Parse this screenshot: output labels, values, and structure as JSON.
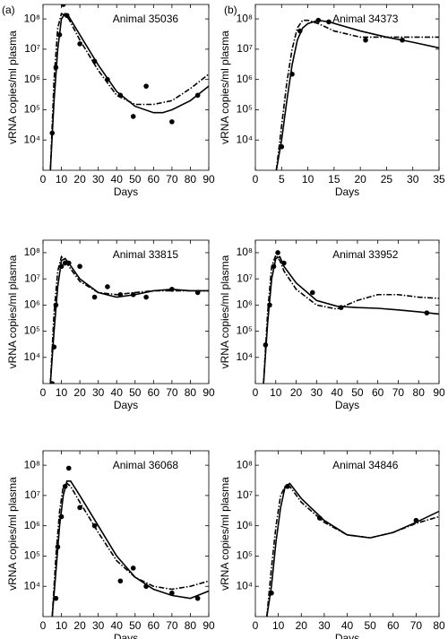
{
  "panel_labels": [
    "(a)",
    "(b)"
  ],
  "chart_data": [
    {
      "type": "line",
      "title": "Animal 35036",
      "xlabel": "Days",
      "ylabel": "vRNA copies/ml plasma",
      "yscale": "log",
      "xlim": [
        0,
        90
      ],
      "xticks": [
        0,
        10,
        20,
        30,
        40,
        50,
        60,
        70,
        80,
        90
      ],
      "ylim": [
        1000,
        300000000
      ],
      "yticks": [
        {
          "value": 10000,
          "label": "10⁴"
        },
        {
          "value": 100000,
          "label": "10⁵"
        },
        {
          "value": 1000000,
          "label": "10⁶"
        },
        {
          "value": 10000000,
          "label": "10⁷"
        },
        {
          "value": 100000000,
          "label": "10⁸"
        }
      ],
      "series": [
        {
          "color": "#000000",
          "marker": "circle",
          "x": [
            5,
            7,
            9,
            11,
            13,
            20,
            28,
            35,
            42,
            49,
            56,
            70,
            84
          ],
          "values": [
            17000,
            2500000,
            30000000,
            300000000,
            130000000,
            15000000,
            4000000,
            1000000,
            300000,
            60000,
            600000,
            40000,
            300000
          ]
        },
        {
          "color": "#000000",
          "dash": "solid",
          "x": [
            4,
            6,
            8,
            10,
            12,
            14,
            20,
            30,
            40,
            50,
            60,
            65,
            70,
            80,
            90
          ],
          "values": [
            1000,
            200000,
            10000000,
            100000000,
            150000000,
            120000000,
            30000000,
            3000000,
            400000,
            130000,
            80000,
            80000,
            100000,
            200000,
            600000
          ]
        },
        {
          "color": "#000000",
          "dash": "dashdot",
          "x": [
            4,
            6,
            8,
            10,
            12,
            14,
            20,
            30,
            40,
            50,
            60,
            70,
            80,
            90
          ],
          "values": [
            1000,
            1000000,
            50000000,
            150000000,
            130000000,
            100000000,
            20000000,
            2000000,
            300000,
            150000,
            150000,
            200000,
            500000,
            1500000
          ]
        }
      ]
    },
    {
      "type": "line",
      "title": "Animal 34373",
      "xlabel": "Days",
      "ylabel": "vRNA copies/ml plasma",
      "yscale": "log",
      "xlim": [
        0,
        35
      ],
      "xticks": [
        0,
        5,
        10,
        15,
        20,
        25,
        30,
        35
      ],
      "ylim": [
        1000,
        300000000
      ],
      "yticks": [
        {
          "value": 10000,
          "label": "10⁴"
        },
        {
          "value": 100000,
          "label": "10⁵"
        },
        {
          "value": 1000000,
          "label": "10⁶"
        },
        {
          "value": 10000000,
          "label": "10⁷"
        },
        {
          "value": 100000000,
          "label": "10⁸"
        }
      ],
      "series": [
        {
          "color": "#000000",
          "marker": "circle",
          "x": [
            5,
            7,
            8.5,
            12,
            14,
            21,
            28
          ],
          "values": [
            6000,
            1500000,
            40000000,
            90000000,
            80000000,
            20000000,
            20000000
          ]
        },
        {
          "color": "#000000",
          "dash": "solid",
          "x": [
            4,
            5,
            6,
            7,
            8,
            9,
            10,
            12,
            14,
            20,
            25,
            30,
            35
          ],
          "values": [
            1000,
            10000,
            200000,
            3000000,
            20000000,
            50000000,
            70000000,
            90000000,
            80000000,
            40000000,
            25000000,
            17000000,
            11000000
          ]
        },
        {
          "color": "#000000",
          "dash": "dashdot",
          "x": [
            4,
            5,
            6,
            7,
            8,
            9,
            10,
            12,
            15,
            20,
            25,
            30,
            35
          ],
          "values": [
            1000,
            30000,
            800000,
            10000000,
            50000000,
            90000000,
            90000000,
            70000000,
            40000000,
            25000000,
            25000000,
            25000000,
            25000000
          ]
        }
      ]
    },
    {
      "type": "line",
      "title": "Animal 33815",
      "xlabel": "Days",
      "ylabel": "vRNA copies/ml plasma",
      "yscale": "log",
      "xlim": [
        0,
        90
      ],
      "xticks": [
        0,
        10,
        20,
        30,
        40,
        50,
        60,
        70,
        80,
        90
      ],
      "ylim": [
        1000,
        300000000
      ],
      "yticks": [
        {
          "value": 10000,
          "label": "10⁴"
        },
        {
          "value": 100000,
          "label": "10⁵"
        },
        {
          "value": 1000000,
          "label": "10⁶"
        },
        {
          "value": 10000000,
          "label": "10⁷"
        },
        {
          "value": 100000000,
          "label": "10⁸"
        }
      ],
      "series": [
        {
          "color": "#000000",
          "marker": "circle",
          "x": [
            5,
            6,
            7,
            10,
            12,
            14,
            20,
            28,
            35,
            42,
            49,
            56,
            70,
            84
          ],
          "values": [
            1000,
            25000,
            1000000,
            30000000,
            40000000,
            40000000,
            30000000,
            2000000,
            5000000,
            2500000,
            2500000,
            2000000,
            4000000,
            3000000
          ]
        },
        {
          "color": "#000000",
          "dash": "solid",
          "x": [
            4,
            6,
            8,
            10,
            12,
            14,
            20,
            30,
            40,
            50,
            60,
            70,
            80,
            90
          ],
          "values": [
            1000,
            100000,
            5000000,
            50000000,
            60000000,
            40000000,
            10000000,
            3000000,
            2000000,
            2500000,
            3500000,
            4000000,
            3500000,
            3500000
          ]
        },
        {
          "color": "#000000",
          "dash": "dashdot",
          "x": [
            4,
            6,
            8,
            10,
            12,
            14,
            20,
            30,
            40,
            50,
            60,
            70,
            80,
            90
          ],
          "values": [
            1000,
            500000,
            20000000,
            70000000,
            50000000,
            30000000,
            8000000,
            3000000,
            2500000,
            3000000,
            3500000,
            3500000,
            3500000,
            3500000
          ]
        }
      ]
    },
    {
      "type": "line",
      "title": "Animal 33952",
      "xlabel": "Days",
      "ylabel": "vRNA copies/ml plasma",
      "yscale": "log",
      "xlim": [
        0,
        90
      ],
      "xticks": [
        0,
        10,
        20,
        30,
        40,
        50,
        60,
        70,
        80,
        90
      ],
      "ylim": [
        1000,
        300000000
      ],
      "yticks": [
        {
          "value": 10000,
          "label": "10⁴"
        },
        {
          "value": 100000,
          "label": "10⁵"
        },
        {
          "value": 1000000,
          "label": "10⁶"
        },
        {
          "value": 10000000,
          "label": "10⁷"
        },
        {
          "value": 100000000,
          "label": "10⁸"
        }
      ],
      "series": [
        {
          "color": "#000000",
          "marker": "circle",
          "x": [
            5,
            7,
            9,
            11,
            14,
            28,
            42,
            84
          ],
          "values": [
            30000,
            1000000,
            30000000,
            100000000,
            40000000,
            3000000,
            800000,
            500000
          ]
        },
        {
          "color": "#000000",
          "dash": "solid",
          "x": [
            4,
            6,
            8,
            10,
            12,
            14,
            20,
            30,
            40,
            50,
            60,
            70,
            80,
            90
          ],
          "values": [
            1000,
            200000,
            10000000,
            60000000,
            70000000,
            30000000,
            7000000,
            1500000,
            900000,
            800000,
            750000,
            650000,
            550000,
            450000
          ]
        },
        {
          "color": "#000000",
          "dash": "dashdot",
          "x": [
            4,
            6,
            8,
            10,
            12,
            14,
            20,
            30,
            40,
            50,
            60,
            70,
            80,
            90
          ],
          "values": [
            1000,
            500000,
            30000000,
            80000000,
            50000000,
            20000000,
            4000000,
            1000000,
            700000,
            1500000,
            2500000,
            2500000,
            2000000,
            1800000
          ]
        }
      ]
    },
    {
      "type": "line",
      "title": "Animal 36068",
      "xlabel": "Days",
      "ylabel": "vRNA copies/ml plasma",
      "yscale": "log",
      "xlim": [
        0,
        90
      ],
      "xticks": [
        0,
        10,
        20,
        30,
        40,
        50,
        60,
        70,
        80,
        90
      ],
      "ylim": [
        1000,
        300000000
      ],
      "yticks": [
        {
          "value": 10000,
          "label": "10⁴"
        },
        {
          "value": 100000,
          "label": "10⁵"
        },
        {
          "value": 1000000,
          "label": "10⁶"
        },
        {
          "value": 10000000,
          "label": "10⁷"
        },
        {
          "value": 100000000,
          "label": "10⁸"
        }
      ],
      "series": [
        {
          "color": "#000000",
          "marker": "circle",
          "x": [
            7,
            8,
            10,
            12,
            14,
            20,
            28,
            42,
            49,
            56,
            70,
            84
          ],
          "values": [
            4000,
            200000,
            2000000,
            20000000,
            80000000,
            4000000,
            1000000,
            15000,
            40000,
            10000,
            6000,
            4000
          ]
        },
        {
          "color": "#000000",
          "dash": "solid",
          "x": [
            5,
            7,
            9,
            11,
            13,
            15,
            20,
            30,
            40,
            50,
            60,
            70,
            80,
            90
          ],
          "values": [
            1000,
            30000,
            1000000,
            10000000,
            30000000,
            30000000,
            10000000,
            1000000,
            100000,
            20000,
            8000,
            5000,
            4000,
            7000
          ]
        },
        {
          "color": "#000000",
          "dash": "dashdot",
          "x": [
            5,
            7,
            9,
            11,
            13,
            15,
            20,
            30,
            40,
            50,
            60,
            70,
            80,
            90
          ],
          "values": [
            1000,
            100000,
            3000000,
            20000000,
            25000000,
            20000000,
            6000000,
            600000,
            70000,
            20000,
            10000,
            8000,
            10000,
            15000
          ]
        }
      ]
    },
    {
      "type": "line",
      "title": "Animal 34846",
      "xlabel": "Days",
      "ylabel": "vRNA copies/ml plasma",
      "yscale": "log",
      "xlim": [
        0,
        80
      ],
      "xticks": [
        0,
        10,
        20,
        30,
        40,
        50,
        60,
        70,
        80
      ],
      "ylim": [
        1000,
        300000000
      ],
      "yticks": [
        {
          "value": 10000,
          "label": "10⁴"
        },
        {
          "value": 100000,
          "label": "10⁵"
        },
        {
          "value": 1000000,
          "label": "10⁶"
        },
        {
          "value": 10000000,
          "label": "10⁷"
        },
        {
          "value": 100000000,
          "label": "10⁸"
        }
      ],
      "series": [
        {
          "color": "#000000",
          "marker": "circle",
          "x": [
            7,
            14,
            28,
            70
          ],
          "values": [
            6000,
            20000000,
            1800000,
            1500000
          ]
        },
        {
          "color": "#000000",
          "dash": "solid",
          "x": [
            5,
            7,
            9,
            11,
            13,
            15,
            20,
            30,
            40,
            50,
            60,
            70,
            80
          ],
          "values": [
            1000,
            10000,
            300000,
            4000000,
            20000000,
            25000000,
            8000000,
            1500000,
            500000,
            400000,
            600000,
            1300000,
            3000000
          ]
        },
        {
          "color": "#000000",
          "dash": "dashdot",
          "x": [
            5,
            7,
            9,
            11,
            13,
            15,
            20,
            30,
            40,
            50,
            60,
            70,
            80
          ],
          "values": [
            1000,
            40000,
            1000000,
            10000000,
            20000000,
            20000000,
            6000000,
            1300000,
            500000,
            400000,
            600000,
            1200000,
            2000000
          ]
        }
      ]
    }
  ]
}
